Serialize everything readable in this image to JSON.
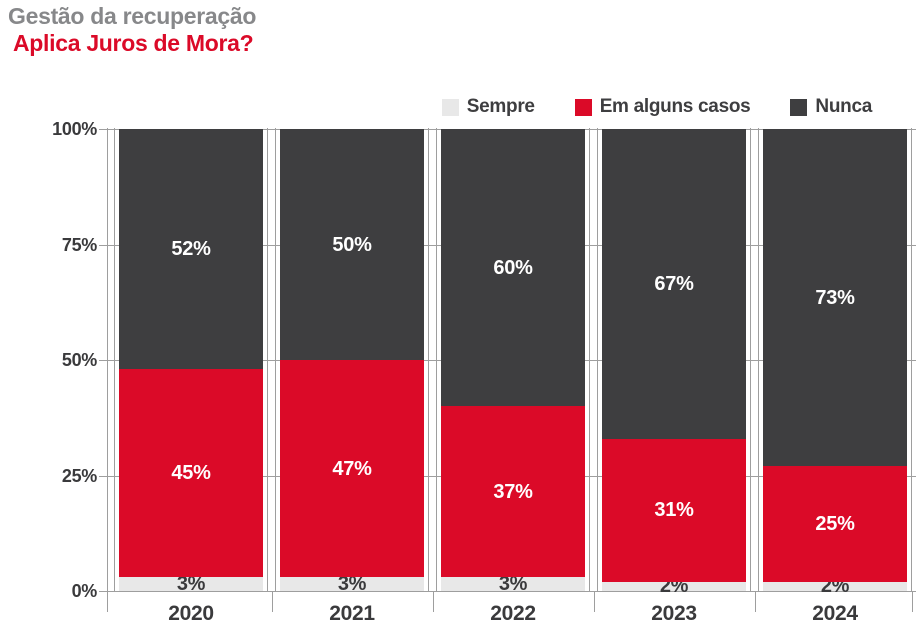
{
  "header": {
    "title": "Gestão da recuperação",
    "subtitle": "Aplica Juros de Mora?"
  },
  "chart_data": {
    "type": "bar",
    "stacked": true,
    "title": "Gestão da recuperação",
    "subtitle": "Aplica Juros de Mora?",
    "categories": [
      "2020",
      "2021",
      "2022",
      "2023",
      "2024"
    ],
    "series": [
      {
        "name": "Sempre",
        "color": "#E8E8E8",
        "label_color": "#3A3A3C",
        "values": [
          3,
          3,
          3,
          2,
          2
        ]
      },
      {
        "name": "Em alguns casos",
        "color": "#DB0A28",
        "label_color": "#FFFFFF",
        "values": [
          45,
          47,
          37,
          31,
          25
        ]
      },
      {
        "name": "Nunca",
        "color": "#3E3E40",
        "label_color": "#FFFFFF",
        "values": [
          52,
          50,
          60,
          67,
          73
        ]
      }
    ],
    "value_suffix": "%",
    "y_ticks": [
      "0%",
      "25%",
      "50%",
      "75%",
      "100%"
    ],
    "ylim": [
      0,
      100
    ],
    "grid": true,
    "legend_position": "top-right"
  },
  "colors": {
    "title_gray": "#87888A",
    "accent_red": "#DB0A28",
    "dark": "#3E3E40",
    "axis_text": "#3A3A3C",
    "grid": "#9E9E9E",
    "background": "#FFFFFF"
  }
}
